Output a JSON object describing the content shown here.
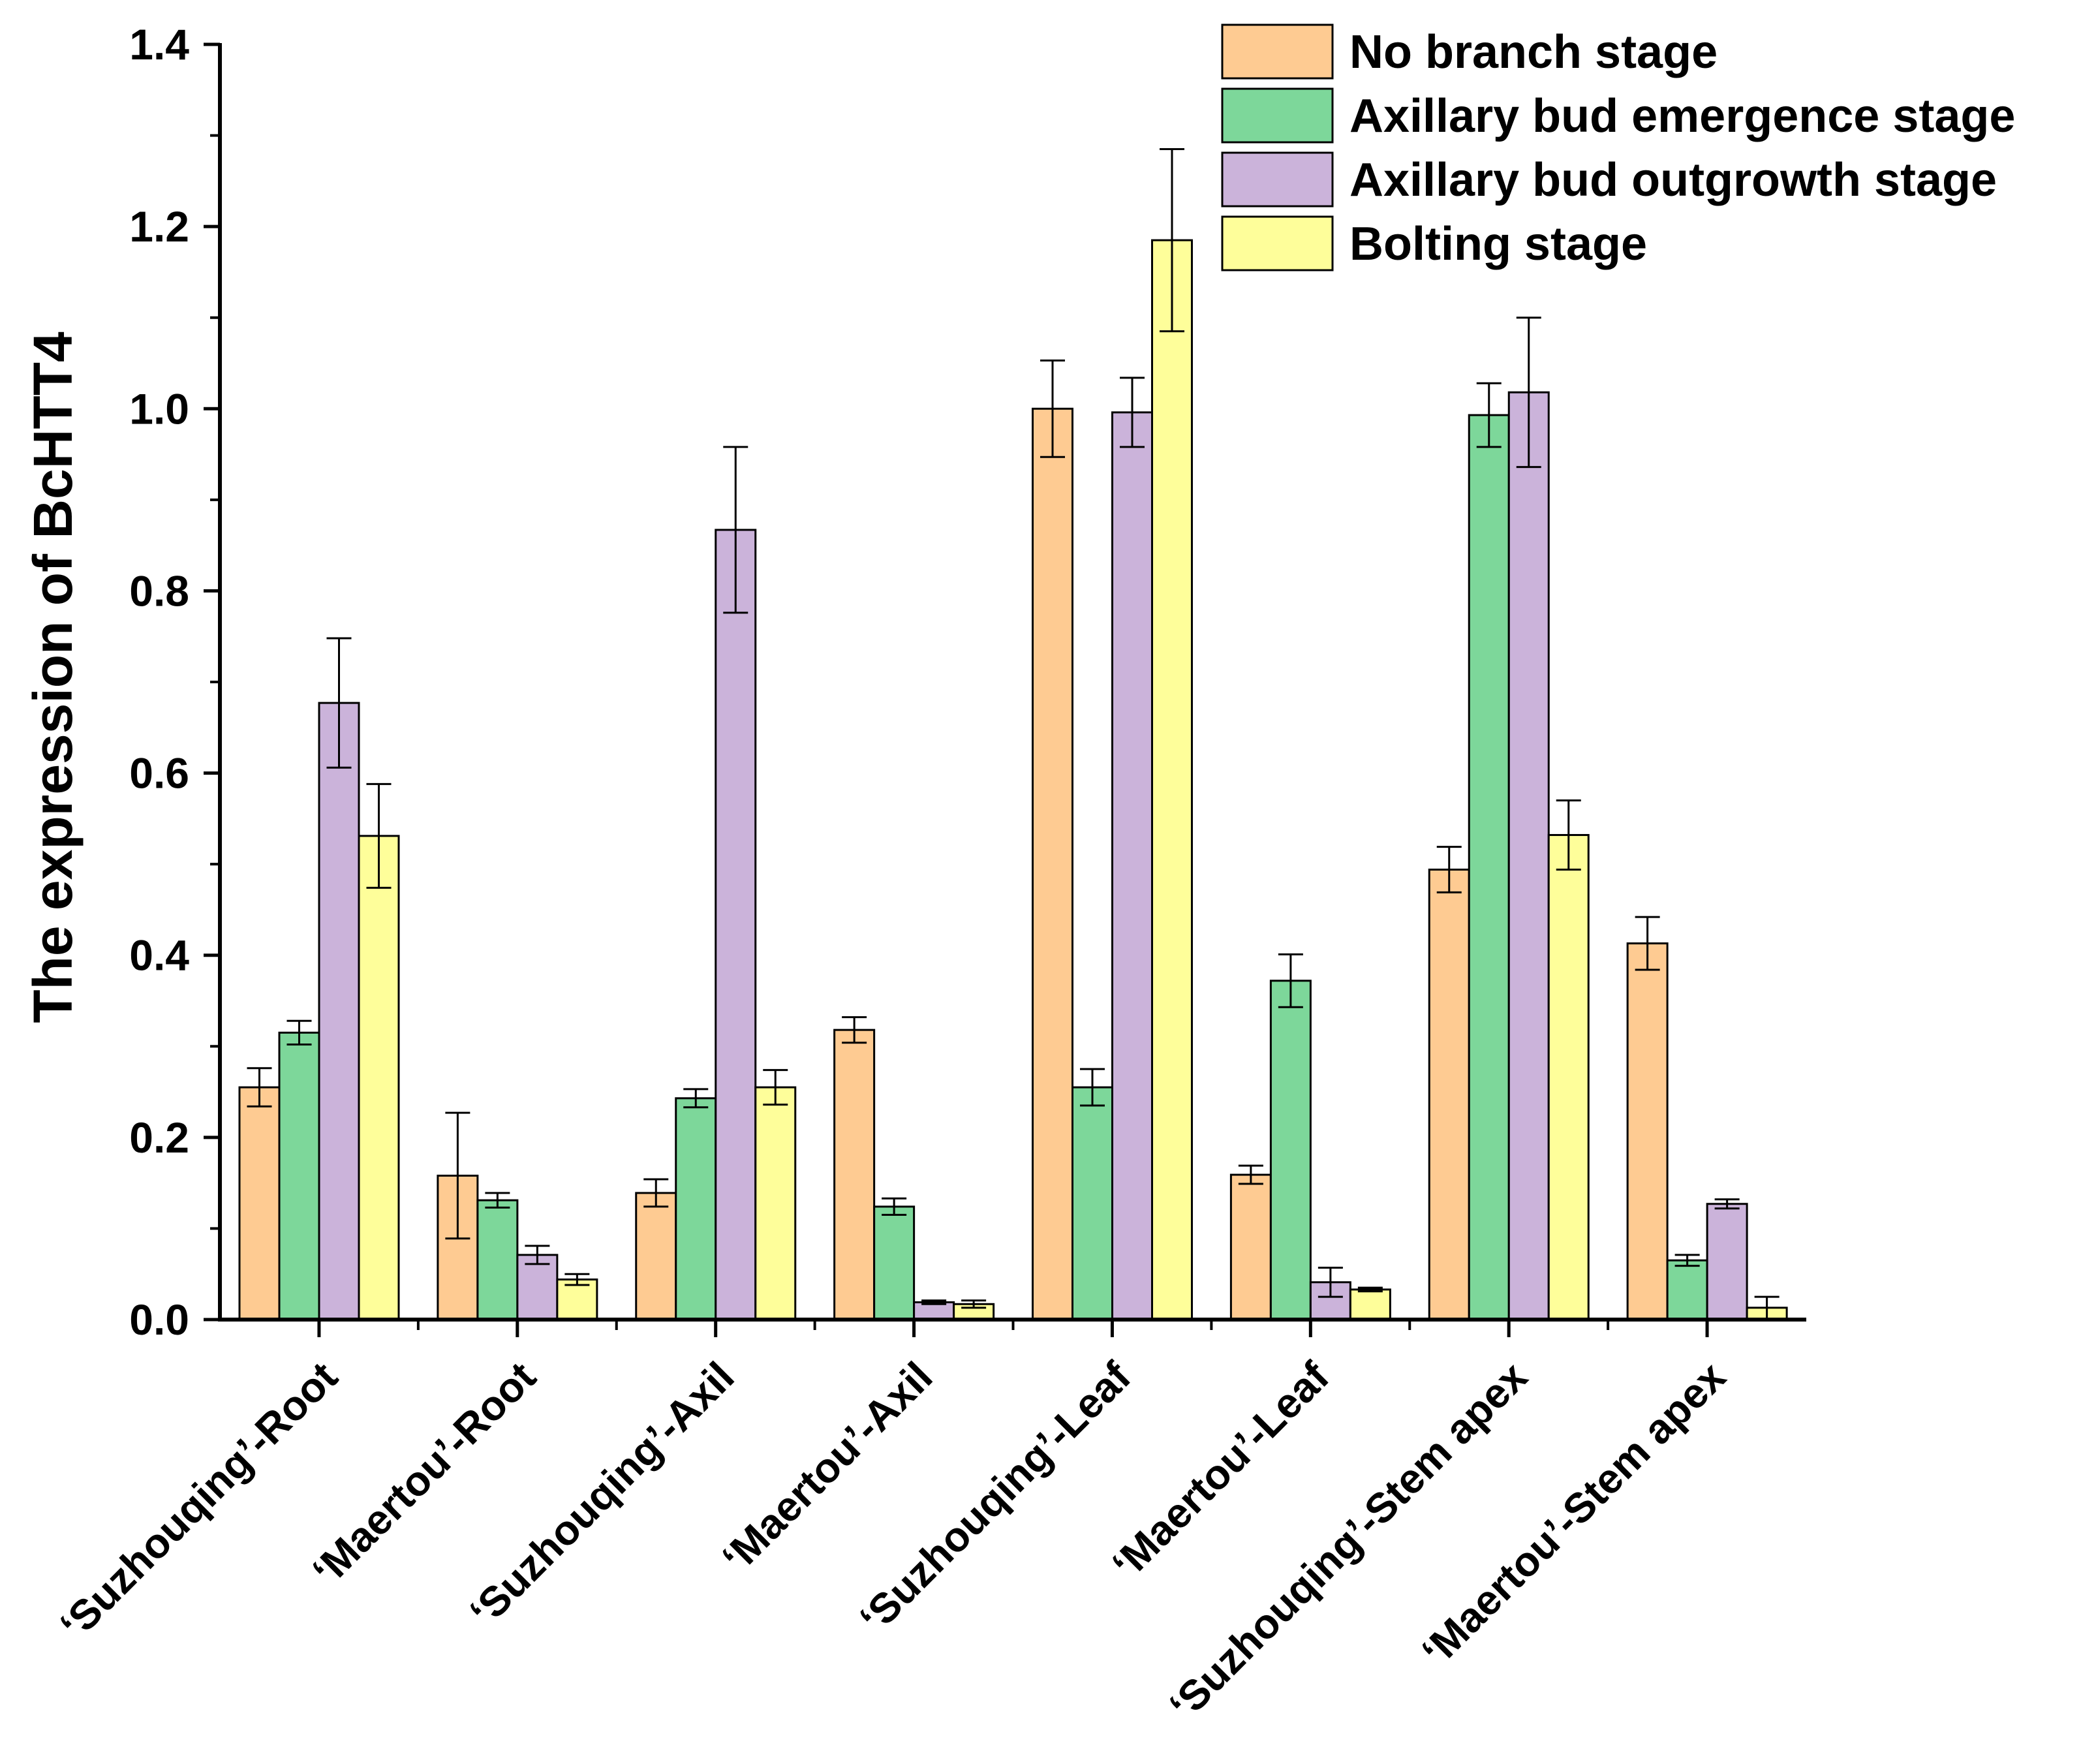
{
  "chart_data": {
    "type": "bar",
    "title": "",
    "xlabel": "",
    "ylabel": "The expression of BcHTT4",
    "ylim": [
      0,
      1.4
    ],
    "yticks": [
      "0.0",
      "0.2",
      "0.4",
      "0.6",
      "0.8",
      "1.0",
      "1.2",
      "1.4"
    ],
    "grid": false,
    "legend_position": "top-right",
    "categories": [
      "‘Suzhouqing’-Root",
      "‘Maertou’-Root",
      "‘Suzhouqing’-Axil",
      "‘Maertou’-Axil",
      "‘Suzhouqing’-Leaf",
      "‘Maertou’-Leaf",
      "‘Suzhouqing’-Stem apex",
      "‘Maertou’-Stem apex"
    ],
    "series": [
      {
        "name": "No branch stage",
        "color": "#FECB92",
        "values": [
          0.255,
          0.158,
          0.139,
          0.318,
          1.0,
          0.159,
          0.494,
          0.413
        ],
        "errors": [
          0.021,
          0.069,
          0.015,
          0.014,
          0.053,
          0.01,
          0.025,
          0.029
        ]
      },
      {
        "name": "Axillary bud emergence stage",
        "color": "#7DD79A",
        "values": [
          0.315,
          0.131,
          0.243,
          0.124,
          0.255,
          0.372,
          0.993,
          0.065
        ],
        "errors": [
          0.013,
          0.008,
          0.01,
          0.009,
          0.02,
          0.029,
          0.035,
          0.006
        ]
      },
      {
        "name": "Axillary bud outgrowth stage",
        "color": "#CBB3DA",
        "values": [
          0.677,
          0.071,
          0.867,
          0.019,
          0.996,
          0.041,
          1.018,
          0.127
        ],
        "errors": [
          0.071,
          0.01,
          0.091,
          0.002,
          0.038,
          0.016,
          0.082,
          0.005
        ]
      },
      {
        "name": "Bolting stage",
        "color": "#FEFE9A",
        "values": [
          0.531,
          0.044,
          0.255,
          0.017,
          1.185,
          0.033,
          0.532,
          0.013
        ],
        "errors": [
          0.057,
          0.006,
          0.019,
          0.004,
          0.1,
          0.002,
          0.038,
          0.012
        ]
      }
    ]
  }
}
